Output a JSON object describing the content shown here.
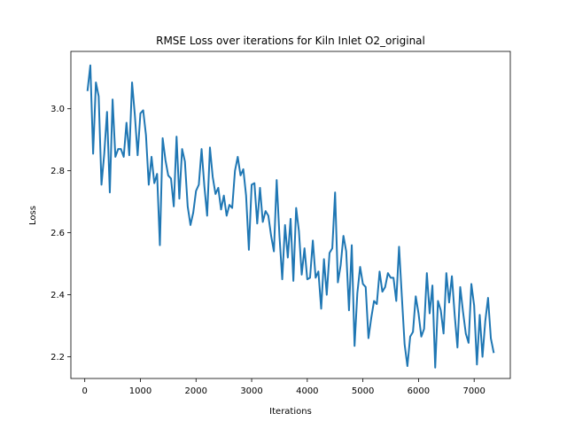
{
  "chart_data": {
    "type": "line",
    "title": "RMSE Loss over iterations for Kiln Inlet O2_original",
    "xlabel": "Iterations",
    "ylabel": "Loss",
    "xlim": [
      -250,
      7650
    ],
    "ylim": [
      2.13,
      3.185
    ],
    "xticks": [
      0,
      1000,
      2000,
      3000,
      4000,
      5000,
      6000,
      7000
    ],
    "xtick_labels": [
      "0",
      "1000",
      "2000",
      "3000",
      "4000",
      "5000",
      "6000",
      "7000"
    ],
    "yticks": [
      2.2,
      2.4,
      2.6,
      2.8,
      3.0
    ],
    "ytick_labels": [
      "2.2",
      "2.4",
      "2.6",
      "2.8",
      "3.0"
    ],
    "grid": false,
    "line_color": "#1f77b4",
    "series": [
      {
        "x": [
          50,
          100,
          150,
          200,
          250,
          300,
          350,
          400,
          450,
          500,
          550,
          600,
          650,
          700,
          750,
          800,
          850,
          900,
          950,
          1000,
          1050,
          1100,
          1150,
          1200,
          1250,
          1300,
          1350,
          1400,
          1450,
          1500,
          1550,
          1600,
          1650,
          1700,
          1750,
          1800,
          1850,
          1900,
          1950,
          2000,
          2050,
          2100,
          2150,
          2200,
          2250,
          2300,
          2350,
          2400,
          2450,
          2500,
          2550,
          2600,
          2650,
          2700,
          2750,
          2800,
          2850,
          2900,
          2950,
          3000,
          3050,
          3100,
          3150,
          3200,
          3250,
          3300,
          3350,
          3400,
          3450,
          3500,
          3550,
          3600,
          3650,
          3700,
          3750,
          3800,
          3850,
          3900,
          3950,
          4000,
          4050,
          4100,
          4150,
          4200,
          4250,
          4300,
          4350,
          4400,
          4450,
          4500,
          4550,
          4600,
          4650,
          4700,
          4750,
          4800,
          4850,
          4900,
          4950,
          5000,
          5050,
          5100,
          5150,
          5200,
          5250,
          5300,
          5350,
          5400,
          5450,
          5500,
          5550,
          5600,
          5650,
          5700,
          5750,
          5800,
          5850,
          5900,
          5950,
          6000,
          6050,
          6100,
          6150,
          6200,
          6250,
          6300,
          6350,
          6400,
          6450,
          6500,
          6550,
          6600,
          6650,
          6700,
          6750,
          6800,
          6850,
          6900,
          6950,
          7000,
          7050,
          7100,
          7150,
          7200,
          7250,
          7300,
          7350
        ],
        "values": [
          3.06,
          3.14,
          2.855,
          3.085,
          3.04,
          2.755,
          2.855,
          2.99,
          2.73,
          3.03,
          2.845,
          2.87,
          2.87,
          2.845,
          2.955,
          2.85,
          3.085,
          2.98,
          2.85,
          2.985,
          2.995,
          2.915,
          2.755,
          2.845,
          2.76,
          2.79,
          2.56,
          2.905,
          2.835,
          2.785,
          2.775,
          2.685,
          2.91,
          2.71,
          2.87,
          2.83,
          2.685,
          2.625,
          2.665,
          2.735,
          2.755,
          2.87,
          2.75,
          2.655,
          2.875,
          2.78,
          2.725,
          2.745,
          2.675,
          2.72,
          2.655,
          2.69,
          2.68,
          2.8,
          2.845,
          2.785,
          2.805,
          2.72,
          2.545,
          2.755,
          2.76,
          2.63,
          2.745,
          2.635,
          2.67,
          2.655,
          2.59,
          2.54,
          2.77,
          2.59,
          2.45,
          2.625,
          2.52,
          2.645,
          2.445,
          2.68,
          2.605,
          2.465,
          2.55,
          2.45,
          2.455,
          2.575,
          2.455,
          2.475,
          2.355,
          2.515,
          2.4,
          2.535,
          2.55,
          2.73,
          2.44,
          2.495,
          2.59,
          2.54,
          2.35,
          2.56,
          2.235,
          2.405,
          2.49,
          2.435,
          2.425,
          2.26,
          2.325,
          2.38,
          2.37,
          2.475,
          2.41,
          2.425,
          2.47,
          2.455,
          2.455,
          2.38,
          2.555,
          2.395,
          2.24,
          2.17,
          2.265,
          2.28,
          2.395,
          2.34,
          2.265,
          2.29,
          2.47,
          2.34,
          2.43,
          2.165,
          2.38,
          2.35,
          2.275,
          2.47,
          2.375,
          2.46,
          2.335,
          2.23,
          2.425,
          2.345,
          2.275,
          2.245,
          2.435,
          2.365,
          2.175,
          2.335,
          2.2,
          2.315,
          2.39,
          2.26,
          2.215
        ]
      }
    ]
  }
}
